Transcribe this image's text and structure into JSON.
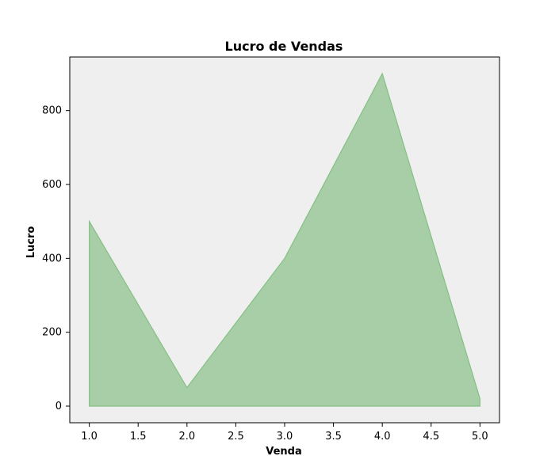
{
  "chart_data": {
    "type": "area",
    "title": "Lucro de Vendas",
    "xlabel": "Venda",
    "ylabel": "Lucro",
    "x": [
      1,
      2,
      3,
      4,
      5
    ],
    "series": [
      {
        "values": [
          500,
          50,
          400,
          900,
          20
        ]
      }
    ],
    "xlim": [
      0.8,
      5.2
    ],
    "ylim": [
      -45,
      945
    ],
    "xticks": [
      1.0,
      1.5,
      2.0,
      2.5,
      3.0,
      3.5,
      4.0,
      4.5,
      5.0
    ],
    "xtick_labels": [
      "1.0",
      "1.5",
      "2.0",
      "2.5",
      "3.0",
      "3.5",
      "4.0",
      "4.5",
      "5.0"
    ],
    "yticks": [
      0,
      200,
      400,
      600,
      800
    ],
    "ytick_labels": [
      "0",
      "200",
      "400",
      "600",
      "800"
    ],
    "grid": false,
    "legend": false,
    "colors": {
      "plot_background": "#efefef",
      "fill": "#a8cea8",
      "line": "#84c084",
      "axes": "#000000"
    }
  }
}
